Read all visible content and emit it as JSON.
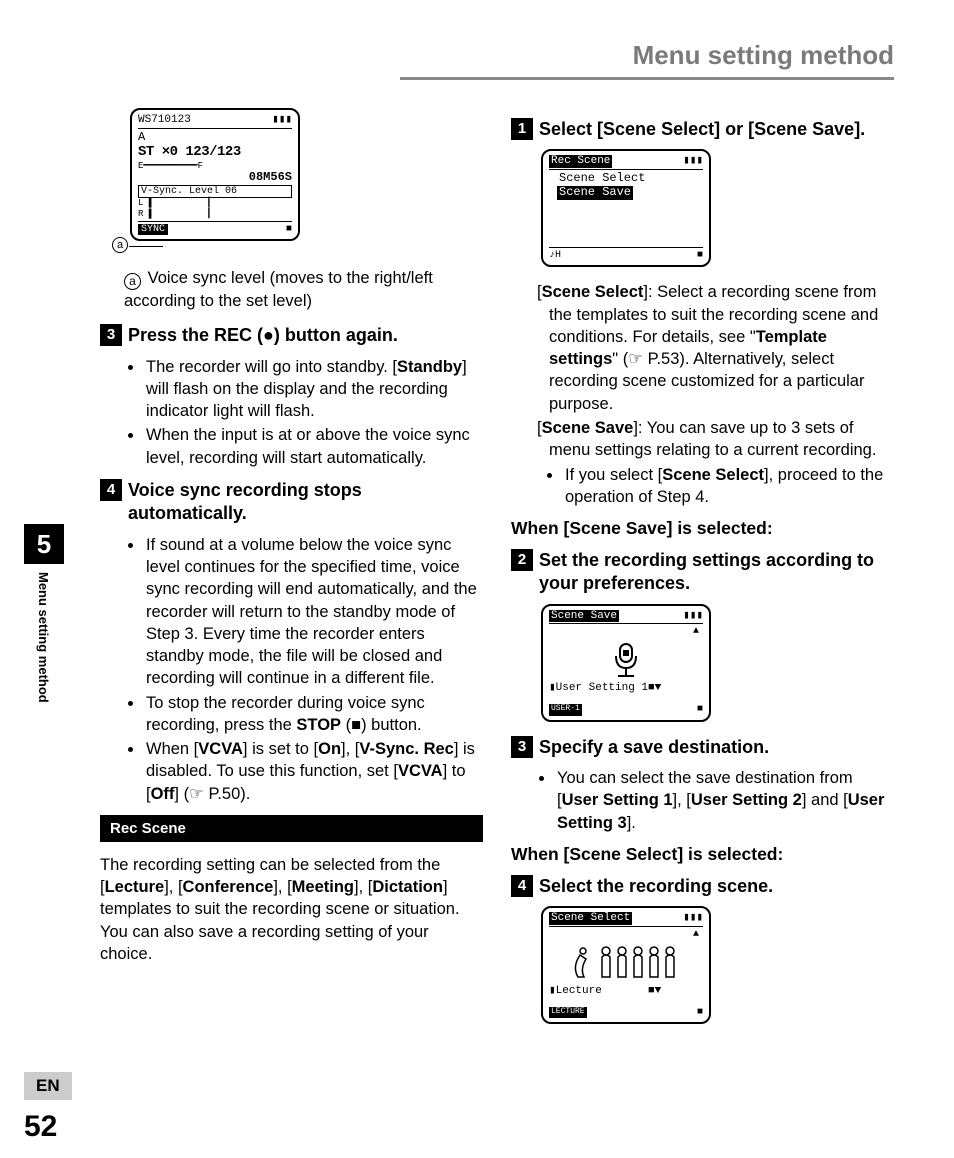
{
  "header_title": "Menu setting method",
  "side": {
    "chapter": "5",
    "label": "Menu setting method",
    "lang": "EN",
    "page": "52"
  },
  "left": {
    "lcd1": {
      "title": "WS710123",
      "bat": "▮▮▮",
      "line_a": "A",
      "big": "ST ×0 123/123",
      "scale": "E━━━━━━━━━━F",
      "time": "08M56S",
      "vs": "V-Sync. Level 06",
      "lr": "L ▌          ▎\nR ▌          ▎",
      "bottom_left": "SYNC",
      "bottom_right": "■"
    },
    "callout_letter": "a",
    "callout_text_prefix": "Voice sync level (",
    "callout_text_bold": "moves to the right/left according to the set level",
    "callout_text_suffix": ")",
    "step3_num": "3",
    "step3_text": "Press the REC (●) button again.",
    "step3_bullets": [
      "The recorder will go into standby. [<b>Standby</b>] will flash on the display and the recording indicator light will flash.",
      "When the input is at or above the voice sync level, recording will start automatically."
    ],
    "step4_num": "4",
    "step4_text": "Voice sync recording stops automatically.",
    "step4_bullets": [
      "If sound at a volume below the voice sync level continues for the specified time, voice sync recording will end automatically, and the recorder will return to the standby mode of Step 3. Every time the recorder enters standby mode, the file will be closed and recording will continue in a different file.",
      "To stop the recorder during voice sync recording, press the <b>STOP</b> (■) button.",
      "When [<b>VCVA</b>] is set to [<b>On</b>], [<b>V-Sync. Rec</b>] is disabled. To use this function, set [<b>VCVA</b>] to [<b>Off</b>] (☞ P.50)."
    ],
    "rec_scene_bar": "Rec Scene",
    "rec_scene_para": "The recording setting can be selected from the [<b>Lecture</b>], [<b>Conference</b>], [<b>Meeting</b>], [<b>Dictation</b>] templates to suit the recording scene or situation. You can also save a recording setting of your choice."
  },
  "right": {
    "step1_num": "1",
    "step1_text": "Select [<b>Scene Select</b>] or [<b>Scene Save</b>].",
    "lcd2": {
      "title": "Rec Scene",
      "opt1": "Scene Select",
      "opt2": "Scene Save",
      "bl": "♪H",
      "br": "■"
    },
    "desc_select": "[<b>Scene Select</b>]: Select a recording scene from the templates to suit the recording scene and conditions. For details, see \"<b>Template settings</b>\" (☞ P.53). Alternatively, select recording scene customized for a particular purpose.",
    "desc_save": "[<b>Scene Save</b>]: You can save up to 3 sets of menu settings relating to a current recording.",
    "desc_bullet": "If you select [<b>Scene Select</b>], proceed to the operation of Step 4.",
    "sub_save": "When [<b>Scene Save</b>] is selected:",
    "step2_num": "2",
    "step2_text": "Set the recording settings according to your preferences.",
    "lcd3": {
      "title": "Scene Save",
      "line": "▮User Setting 1■▼",
      "bl": "USER-1",
      "arrow": "▲"
    },
    "step3r_num": "3",
    "step3r_text": "Specify a save destination.",
    "step3r_bullet": "You can select the save destination from [<b>User Setting 1</b>], [<b>User Setting 2</b>] and [<b>User Setting 3</b>].",
    "sub_select": "When [<b>Scene Select</b>] is selected:",
    "step4r_num": "4",
    "step4r_text": "Select the recording scene.",
    "lcd4": {
      "title": "Scene Select",
      "line": "▮Lecture       ■▼",
      "bl": "LECTURE",
      "arrow": "▲"
    }
  }
}
